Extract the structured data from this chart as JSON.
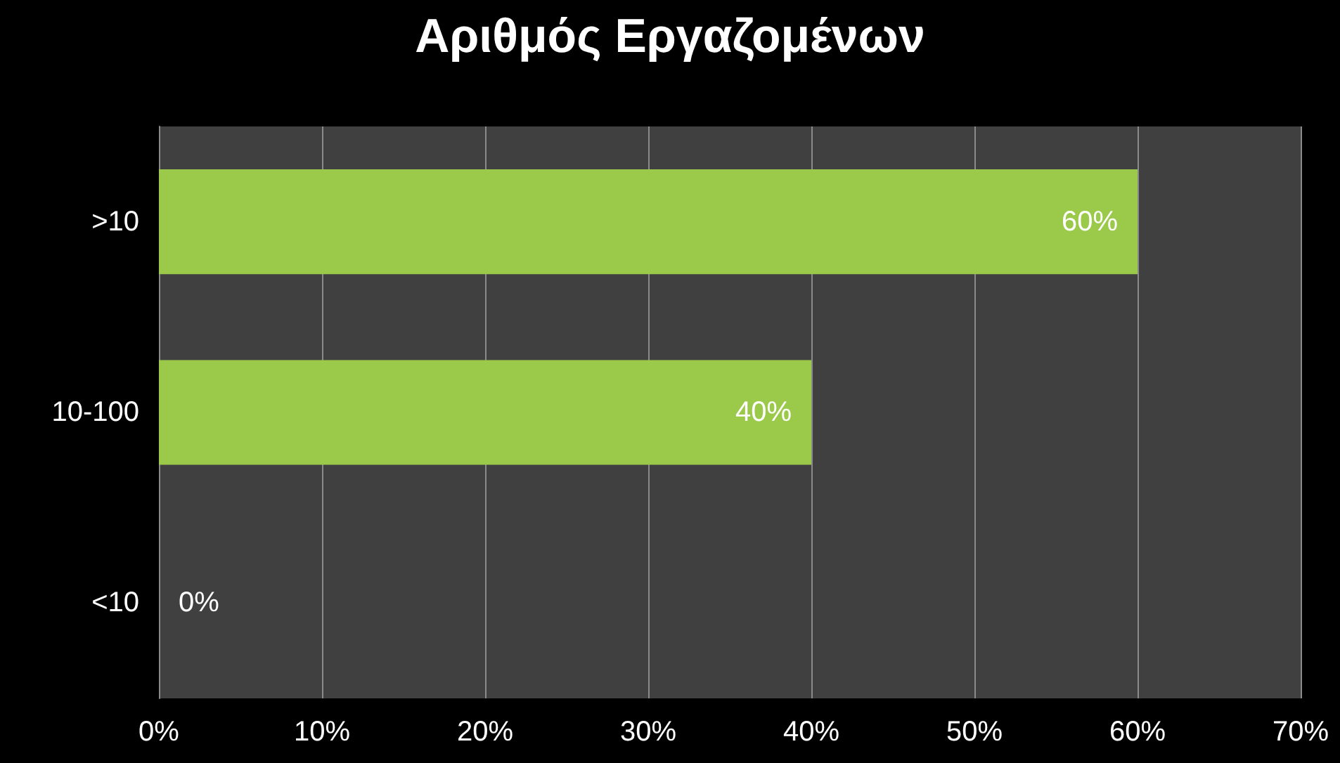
{
  "chart_data": {
    "type": "bar",
    "orientation": "horizontal",
    "title": "Αριθμός Εργαζομένων",
    "categories": [
      ">10",
      "10-100",
      "<10"
    ],
    "values": [
      60,
      40,
      0
    ],
    "value_labels": [
      "60%",
      "40%",
      "0%"
    ],
    "color": "#9bc94a",
    "xlim": [
      0,
      70
    ],
    "xticks": [
      {
        "value": 0,
        "label": "0%"
      },
      {
        "value": 10,
        "label": "10%"
      },
      {
        "value": 20,
        "label": "20%"
      },
      {
        "value": 30,
        "label": "30%"
      },
      {
        "value": 40,
        "label": "40%"
      },
      {
        "value": 50,
        "label": "50%"
      },
      {
        "value": 60,
        "label": "60%"
      },
      {
        "value": 70,
        "label": "70%"
      }
    ],
    "grid": "x"
  }
}
